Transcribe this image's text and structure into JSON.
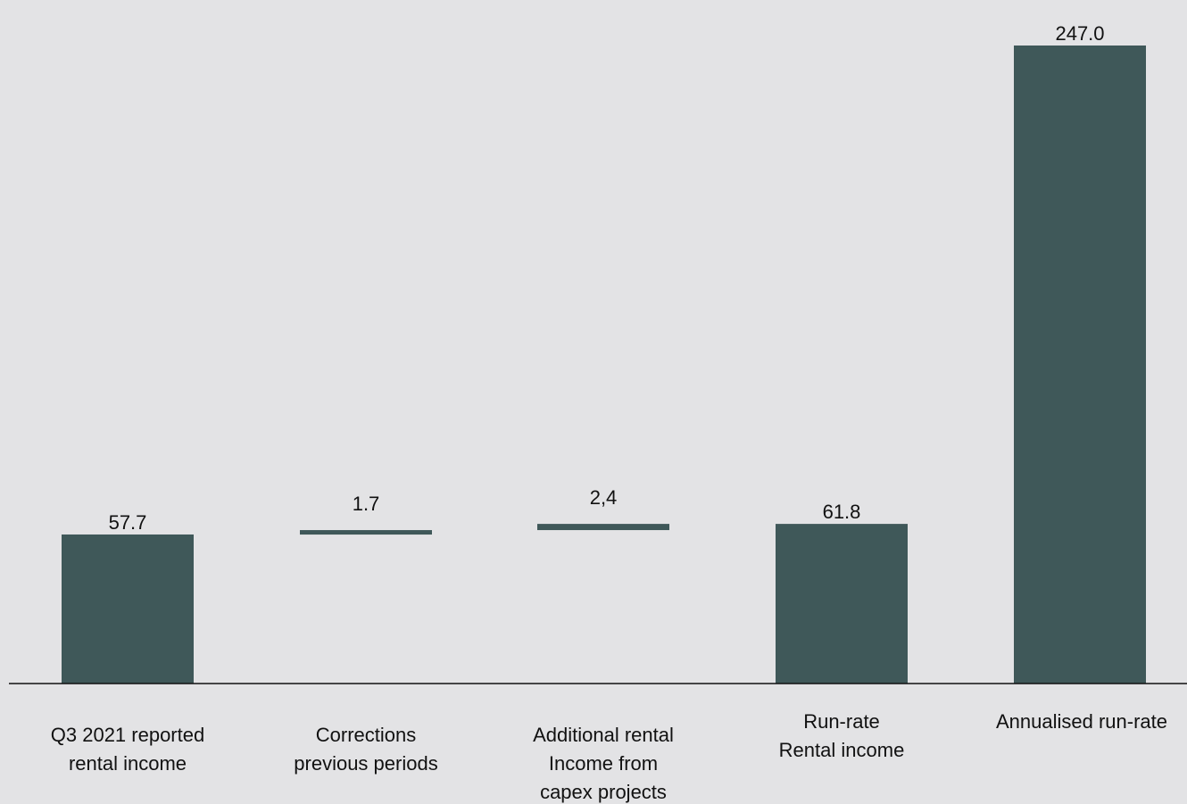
{
  "chart_data": {
    "type": "bar",
    "subtype": "waterfall",
    "title": "",
    "xlabel": "",
    "ylabel": "",
    "grid": false,
    "legend": "none",
    "color": "#3f5859",
    "ylim": [
      0,
      247
    ],
    "categories": [
      [
        "Q3 2021 reported",
        "rental income"
      ],
      [
        "Corrections",
        "previous periods"
      ],
      [
        "Additional rental",
        "Income from",
        "capex projects"
      ],
      [
        "Run-rate",
        "Rental income"
      ],
      [
        "Annualised run-rate"
      ]
    ],
    "bars": [
      {
        "kind": "total",
        "value": 57.7,
        "label": "57.7"
      },
      {
        "kind": "delta",
        "base": 57.7,
        "value": 1.7,
        "label": "1.7"
      },
      {
        "kind": "delta",
        "base": 59.4,
        "value": 2.4,
        "label": "2,4"
      },
      {
        "kind": "total",
        "value": 61.8,
        "label": "61.8"
      },
      {
        "kind": "total",
        "value": 247.0,
        "label": "247.0"
      }
    ]
  }
}
